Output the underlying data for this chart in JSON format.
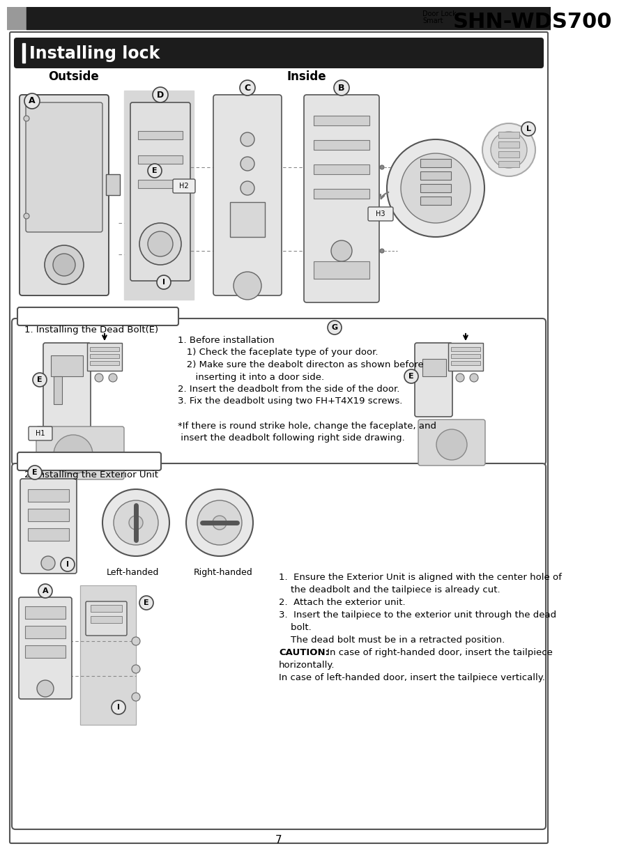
{
  "page_bg": "#ffffff",
  "header_bar_color": "#1c1c1c",
  "header_bar_gray": "#999999",
  "header_bar_height": 32,
  "header_brand_small": "Smart\nDoor Lock",
  "header_model": "SHN-WDS700",
  "title_bar_color": "#1c1c1c",
  "title_bar_text": "Installing lock",
  "title_bar_text_color": "#ffffff",
  "outside_label": "Outside",
  "inside_label": "Inside",
  "section1_title": "1. Installing the Dead Bolt(E)",
  "section1_lines": [
    [
      "normal",
      "1. Before installation"
    ],
    [
      "normal",
      "   1) Check the faceplate type of your door."
    ],
    [
      "normal",
      "   2) Make sure the deabolt directon as shown before"
    ],
    [
      "normal",
      "      inserting it into a door side."
    ],
    [
      "normal",
      "2. Insert the deadbolt from the side of the door."
    ],
    [
      "normal",
      "3. Fix the deadbolt using two FH+T4X19 screws."
    ],
    [
      "normal",
      ""
    ],
    [
      "normal",
      "*If there is round strike hole, change the faceplate, and"
    ],
    [
      "normal",
      " insert the deadbolt following right side drawing."
    ]
  ],
  "section2_title": "2. Installing the Exterior Unit",
  "section2_lines": [
    [
      "normal",
      "1.  Ensure the Exterior Unit is aligned with the center hole of"
    ],
    [
      "normal",
      "    the deadbolt and the tailpiece is already cut."
    ],
    [
      "normal",
      "2.  Attach the exterior unit."
    ],
    [
      "normal",
      "3.  Insert the tailpiece to the exterior unit through the dead"
    ],
    [
      "normal",
      "    bolt."
    ],
    [
      "normal",
      "    The dead bolt must be in a retracted position."
    ],
    [
      "caution",
      "CAUTION: In case of right-handed door, insert the tailpiece"
    ],
    [
      "normal",
      "horizontally."
    ],
    [
      "normal",
      "In case of left-handed door, insert the tailpiece vertically."
    ]
  ],
  "left_handed_label": "Left-handed",
  "right_handed_label": "Right-handed",
  "page_number": "7",
  "door_color": "#d8d8d8",
  "unit_color": "#e8e8e8",
  "stroke_color": "#555555",
  "light_gray": "#cccccc",
  "mid_gray": "#aaaaaa"
}
